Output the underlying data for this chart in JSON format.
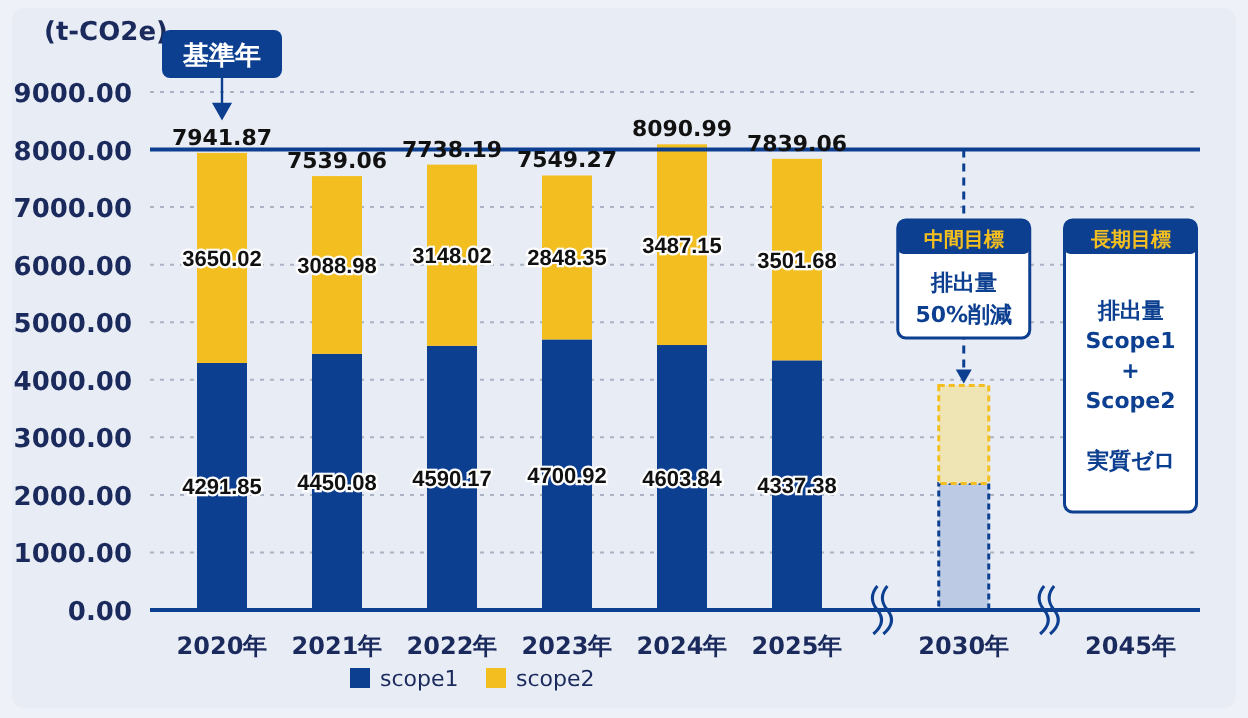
{
  "chart_data": {
    "type": "bar",
    "stacked": true,
    "ylabel": "(t-CO2e)",
    "categories": [
      "2020年",
      "2021年",
      "2022年",
      "2023年",
      "2024年",
      "2025年",
      "2030年",
      "2045年"
    ],
    "series": [
      {
        "name": "scope1",
        "color": "#0d3f91",
        "colors": [
          "#0d3f91",
          "#0d3f91",
          "#0d3f91",
          "#0d3f91",
          "#0d3f91",
          "#0d3f91",
          "#bccbe3",
          "#0d3f91"
        ],
        "values": [
          4291.85,
          4450.08,
          4590.17,
          4700.92,
          4603.84,
          4337.38,
          2200,
          null
        ],
        "value_labels": [
          "4291.85",
          "4450.08",
          "4590.17",
          "4700.92",
          "4603.84",
          "4337.38",
          null,
          null
        ]
      },
      {
        "name": "scope2",
        "color": "#f3be1f",
        "colors": [
          "#f3be1f",
          "#f3be1f",
          "#f3be1f",
          "#f3be1f",
          "#f3be1f",
          "#f3be1f",
          "#efe4b4",
          "#f3be1f"
        ],
        "values": [
          3650.02,
          3088.98,
          3148.02,
          2848.35,
          3487.15,
          3501.68,
          1700,
          null
        ],
        "value_labels": [
          "3650.02",
          "3088.98",
          "3148.02",
          "2848.35",
          "3487.15",
          "3501.68",
          null,
          null
        ]
      }
    ],
    "totals": [
      "7941.87",
      "7539.06",
      "7738.19",
      "7549.27",
      "8090.99",
      "7839.06",
      null,
      null
    ],
    "ylim": [
      0,
      9000
    ],
    "yticks": [
      {
        "value": 0,
        "label": "0.00"
      },
      {
        "value": 1000,
        "label": "1000.00"
      },
      {
        "value": 2000,
        "label": "2000.00"
      },
      {
        "value": 3000,
        "label": "3000.00"
      },
      {
        "value": 4000,
        "label": "4000.00"
      },
      {
        "value": 5000,
        "label": "5000.00"
      },
      {
        "value": 6000,
        "label": "6000.00"
      },
      {
        "value": 7000,
        "label": "7000.00"
      },
      {
        "value": 8000,
        "label": "8000.00"
      },
      {
        "value": 9000,
        "label": "9000.00"
      }
    ],
    "ref_lines": [
      {
        "axis": "y",
        "value": 8000,
        "color": "#0d3f91",
        "line_style": "solid"
      }
    ],
    "annotations": [
      "基準年",
      "中間目標",
      "排出量\n50%削減",
      "長期目標",
      "排出量\nScope1\n+\nScope2\n\n実質ゼロ"
    ],
    "grid": "y",
    "legend": "bottom"
  }
}
